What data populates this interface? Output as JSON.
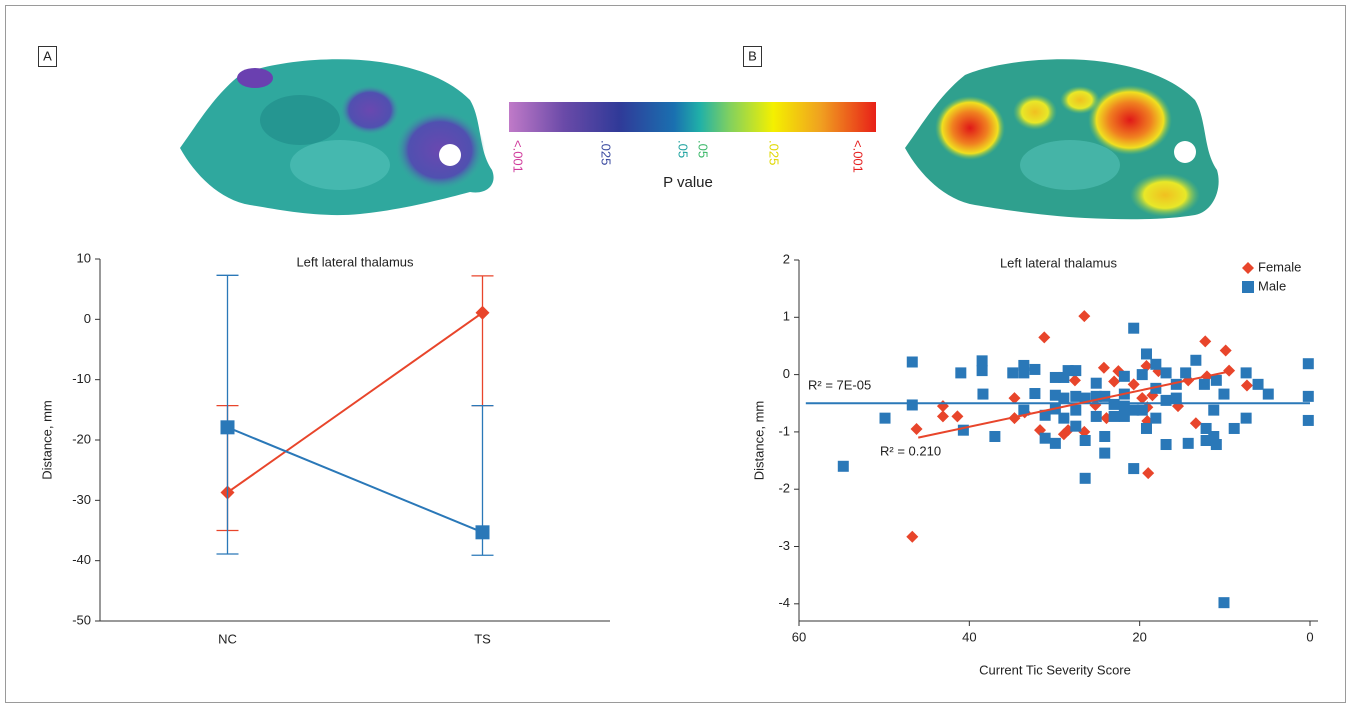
{
  "panels": [
    {
      "label": "A"
    },
    {
      "label": "B"
    }
  ],
  "colorbar": {
    "title": "P value",
    "labels": [
      {
        "text": "<.001",
        "color": "#d03c9c"
      },
      {
        "text": ".025",
        "color": "#3a4aa0"
      },
      {
        "text": ".05",
        "color": "#1fa3a0"
      },
      {
        "text": ".05",
        "color": "#3cb86a"
      },
      {
        "text": ".025",
        "color": "#e0d800"
      },
      {
        "text": "<.001",
        "color": "#e52020"
      }
    ]
  },
  "chart_data": [
    {
      "type": "line",
      "title": "Left lateral thalamus",
      "ylabel": "Distance, mm",
      "categories": [
        "NC",
        "TS"
      ],
      "series": [
        {
          "color": "#e8452b",
          "marker": "diamond",
          "values": [
            -28.7,
            1.1
          ],
          "lower": [
            -35.0,
            -14.3
          ],
          "upper": [
            -14.3,
            7.2
          ]
        },
        {
          "color": "#2a78b8",
          "marker": "square",
          "values": [
            -17.9,
            -35.3
          ],
          "lower": [
            -38.9,
            -39.1
          ],
          "upper": [
            7.3,
            -14.3
          ]
        }
      ],
      "ylim": [
        -50,
        10
      ],
      "yticks": [
        10,
        0,
        -10,
        -20,
        -30,
        -40,
        -50
      ]
    },
    {
      "type": "scatter",
      "title": "Left lateral thalamus",
      "xlabel": "Current Tic Severity Score",
      "ylabel": "Distance, mm",
      "legend": "upper right",
      "series": [
        {
          "name": "Female",
          "color": "#e8452b",
          "marker": "diamond",
          "x": [
            46.2,
            46.7,
            43.1,
            43.1,
            41.4,
            34.7,
            34.7,
            33.5,
            31.2,
            31.7,
            28.9,
            28.4,
            27.6,
            26.5,
            26.5,
            25.2,
            24.2,
            23.9,
            23.0,
            22.5,
            20.7,
            19.7,
            19.2,
            19.1,
            19.1,
            19.0,
            18.5,
            17.8,
            15.5,
            14.3,
            13.4,
            12.3,
            12.1,
            9.9,
            9.5,
            7.4
          ],
          "y": [
            -0.95,
            -2.83,
            -0.55,
            -0.73,
            -0.73,
            -0.41,
            -0.76,
            -0.66,
            0.65,
            -0.97,
            -1.04,
            -0.97,
            -0.1,
            1.02,
            -1.0,
            -0.53,
            0.12,
            -0.76,
            -0.12,
            0.06,
            -0.17,
            -0.41,
            0.15,
            -0.57,
            -0.81,
            -1.72,
            -0.36,
            0.06,
            -0.55,
            -0.1,
            -0.85,
            0.58,
            -0.03,
            0.42,
            0.07,
            -0.19
          ]
        },
        {
          "name": "Male",
          "color": "#2a78b8",
          "marker": "square",
          "x": [
            54.8,
            49.9,
            46.7,
            46.7,
            41.0,
            40.7,
            38.5,
            38.5,
            38.4,
            37.0,
            34.9,
            33.6,
            33.6,
            33.6,
            32.3,
            32.3,
            31.1,
            31.1,
            29.9,
            29.9,
            29.9,
            29.9,
            28.9,
            28.9,
            28.9,
            28.4,
            27.5,
            27.5,
            27.5,
            27.5,
            26.4,
            26.4,
            26.4,
            25.1,
            25.1,
            25.1,
            24.1,
            24.1,
            24.1,
            23.0,
            23.0,
            21.8,
            21.8,
            21.8,
            21.8,
            20.7,
            20.7,
            20.7,
            19.7,
            19.7,
            19.2,
            19.2,
            18.1,
            18.1,
            18.1,
            16.9,
            16.9,
            16.9,
            15.7,
            15.7,
            14.6,
            14.3,
            13.4,
            12.4,
            12.2,
            12.2,
            11.3,
            11.3,
            11.0,
            11.0,
            10.1,
            10.1,
            8.9,
            7.5,
            7.5,
            6.1,
            4.9,
            0.2,
            0.2,
            0.2
          ],
          "y": [
            -1.6,
            -0.76,
            0.22,
            -0.53,
            0.03,
            -0.97,
            0.24,
            0.07,
            -0.34,
            -1.08,
            0.03,
            0.16,
            0.03,
            -0.62,
            0.09,
            -0.33,
            -0.71,
            -1.11,
            -0.05,
            -0.36,
            -0.6,
            -1.2,
            -0.05,
            -0.41,
            -0.76,
            0.07,
            0.07,
            -0.38,
            -0.62,
            -0.9,
            -0.41,
            -1.15,
            -1.81,
            -0.15,
            -0.38,
            -0.73,
            -0.38,
            -1.08,
            -1.37,
            -0.52,
            -0.73,
            -0.03,
            -0.34,
            -0.55,
            -0.73,
            0.81,
            -1.64,
            -0.62,
            0.0,
            -0.62,
            0.36,
            -0.94,
            0.18,
            -0.24,
            -0.76,
            0.03,
            -0.45,
            -1.22,
            -0.17,
            -0.41,
            0.03,
            -1.2,
            0.25,
            -0.17,
            -0.94,
            -1.15,
            -0.62,
            -1.08,
            -1.22,
            -0.1,
            -0.34,
            -3.98,
            -0.94,
            0.03,
            -0.76,
            -0.17,
            -0.34,
            0.19,
            -0.38,
            -0.8
          ]
        }
      ],
      "fits": [
        {
          "color": "#2a78b8",
          "label": "R² = 7E-05",
          "x": [
            59.2,
            0
          ],
          "y": [
            -0.5,
            -0.5
          ]
        },
        {
          "color": "#e8452b",
          "label": "R² = 0.210",
          "x": [
            46,
            9
          ],
          "y": [
            -1.1,
            0.07
          ]
        }
      ],
      "xlim": [
        60,
        0
      ],
      "xticks": [
        60,
        40,
        20,
        0
      ],
      "ylim": [
        -4.3,
        2
      ],
      "yticks": [
        2,
        1,
        0,
        -1,
        -2,
        -3,
        -4
      ]
    }
  ]
}
